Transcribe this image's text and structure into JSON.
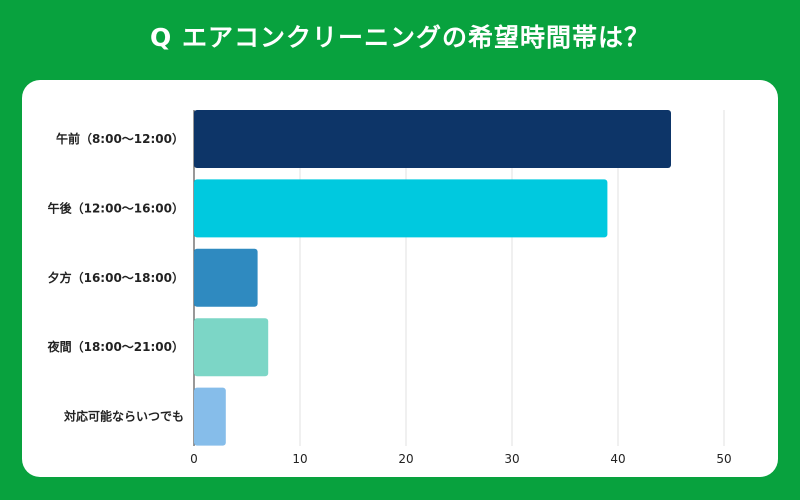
{
  "title": "Q エアコンクリーニングの希望時間帯は？",
  "chart_data": {
    "type": "bar",
    "orientation": "horizontal",
    "title": "Q エアコンクリーニングの希望時間帯は？",
    "categories": [
      "午前（8:00～12:00）",
      "午後（12:00～16:00）",
      "夕方（16:00～18:00）",
      "夜間（18:00～21:00）",
      "対応可能ならいつでも"
    ],
    "values": [
      45,
      39,
      6,
      7,
      3
    ],
    "colors": [
      "#0d3568",
      "#00c9df",
      "#2f8ac0",
      "#7cd6c6",
      "#86bdea"
    ],
    "xlim": [
      0,
      50
    ],
    "xticks": [
      0,
      10,
      20,
      30,
      40,
      50
    ],
    "grid": true,
    "xlabel": "",
    "ylabel": ""
  }
}
